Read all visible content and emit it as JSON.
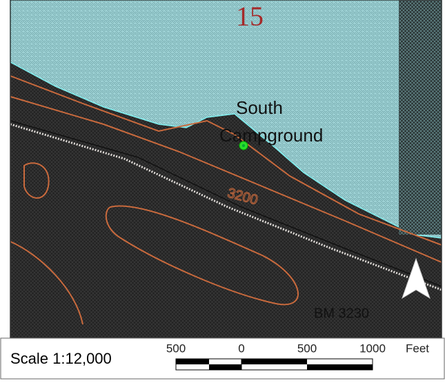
{
  "map": {
    "section_number": "15",
    "place_label_line1": "South",
    "place_label_line2": "Campground",
    "contour_label": "3200",
    "benchmark_label": "BM 3230"
  },
  "scale": {
    "text": "Scale 1:12,000",
    "ticks": [
      "500",
      "0",
      "500",
      "1000"
    ],
    "unit": "Feet"
  }
}
